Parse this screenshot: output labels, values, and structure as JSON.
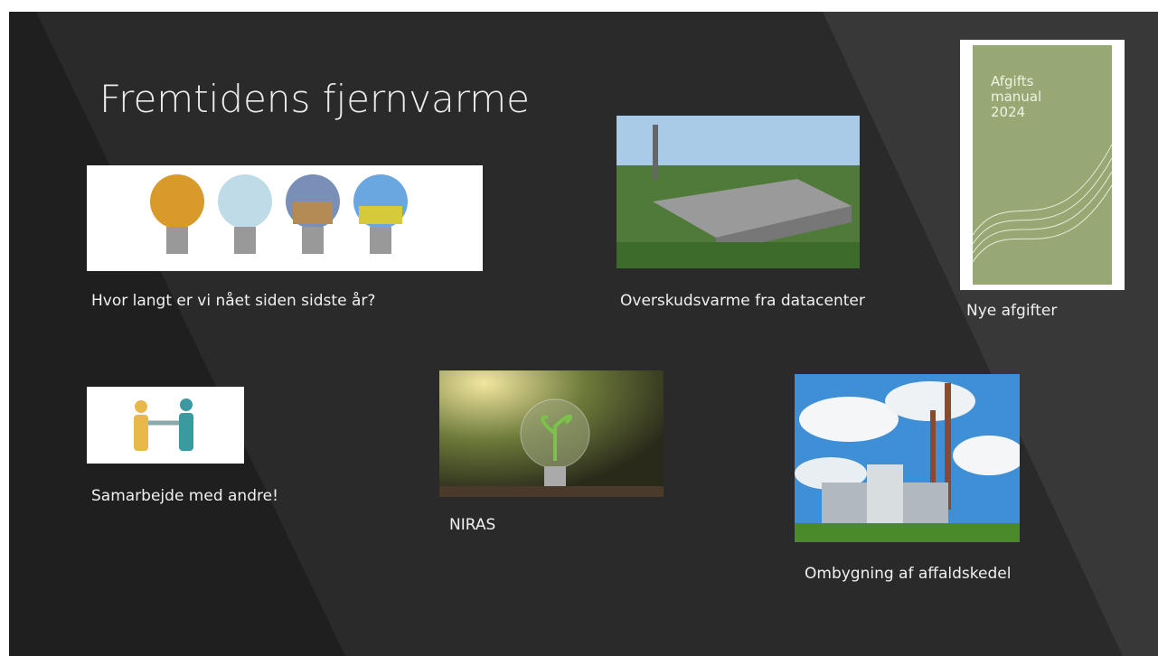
{
  "slide": {
    "title": "Fremtidens fjernvarme",
    "items": [
      {
        "caption": "Hvor langt er vi nået siden sidste år?"
      },
      {
        "caption": "Overskudsvarme fra datacenter"
      },
      {
        "caption": "Nye afgifter",
        "book": [
          "Afgifts",
          "manual",
          "2024"
        ]
      },
      {
        "caption": "Samarbejde med andre!"
      },
      {
        "caption": "NIRAS"
      },
      {
        "caption": "Ombygning af affaldskedel"
      }
    ]
  }
}
